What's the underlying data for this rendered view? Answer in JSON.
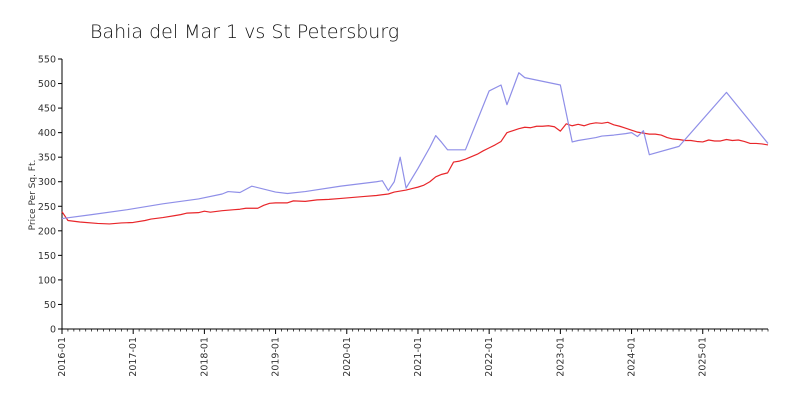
{
  "chart_data": {
    "type": "line",
    "title": "Bahia del Mar 1 vs St Petersburg",
    "xlabel": "",
    "ylabel": "Price Per Sq. Ft.",
    "ylim": [
      0,
      550
    ],
    "yticks": [
      0,
      50,
      100,
      150,
      200,
      250,
      300,
      350,
      400,
      450,
      500,
      550
    ],
    "xticks": [
      "2016-01",
      "2017-01",
      "2018-01",
      "2019-01",
      "2020-01",
      "2021-01",
      "2022-01",
      "2023-01",
      "2024-01",
      "2025-01"
    ],
    "xlim": [
      "2016-01",
      "2025-12"
    ],
    "grid": false,
    "legend": "none",
    "series": [
      {
        "color": "#e8262a",
        "points": [
          [
            "2016-01",
            239
          ],
          [
            "2016-02",
            221
          ],
          [
            "2016-04",
            218
          ],
          [
            "2016-07",
            215
          ],
          [
            "2016-09",
            214
          ],
          [
            "2016-11",
            216
          ],
          [
            "2017-01",
            217
          ],
          [
            "2017-03",
            221
          ],
          [
            "2017-04",
            224
          ],
          [
            "2017-06",
            227
          ],
          [
            "2017-08",
            231
          ],
          [
            "2017-09",
            233
          ],
          [
            "2017-10",
            236
          ],
          [
            "2017-12",
            237
          ],
          [
            "2018-01",
            240
          ],
          [
            "2018-02",
            238
          ],
          [
            "2018-04",
            241
          ],
          [
            "2018-06",
            243
          ],
          [
            "2018-07",
            244
          ],
          [
            "2018-08",
            246
          ],
          [
            "2018-09",
            246
          ],
          [
            "2018-10",
            246
          ],
          [
            "2018-11",
            252
          ],
          [
            "2018-12",
            256
          ],
          [
            "2019-01",
            257
          ],
          [
            "2019-03",
            257
          ],
          [
            "2019-04",
            261
          ],
          [
            "2019-06",
            260
          ],
          [
            "2019-08",
            263
          ],
          [
            "2019-10",
            264
          ],
          [
            "2019-12",
            266
          ],
          [
            "2020-01",
            267
          ],
          [
            "2020-03",
            269
          ],
          [
            "2020-04",
            270
          ],
          [
            "2020-06",
            272
          ],
          [
            "2020-08",
            275
          ],
          [
            "2020-09",
            279
          ],
          [
            "2020-10",
            281
          ],
          [
            "2020-11",
            283
          ],
          [
            "2020-12",
            286
          ],
          [
            "2021-01",
            289
          ],
          [
            "2021-02",
            293
          ],
          [
            "2021-03",
            300
          ],
          [
            "2021-04",
            310
          ],
          [
            "2021-05",
            315
          ],
          [
            "2021-06",
            318
          ],
          [
            "2021-07",
            340
          ],
          [
            "2021-08",
            342
          ],
          [
            "2021-09",
            346
          ],
          [
            "2021-10",
            351
          ],
          [
            "2021-11",
            356
          ],
          [
            "2021-12",
            363
          ],
          [
            "2022-01",
            369
          ],
          [
            "2022-02",
            375
          ],
          [
            "2022-03",
            382
          ],
          [
            "2022-04",
            400
          ],
          [
            "2022-05",
            404
          ],
          [
            "2022-06",
            408
          ],
          [
            "2022-07",
            411
          ],
          [
            "2022-08",
            410
          ],
          [
            "2022-09",
            413
          ],
          [
            "2022-10",
            413
          ],
          [
            "2022-11",
            414
          ],
          [
            "2022-12",
            412
          ],
          [
            "2023-01",
            403
          ],
          [
            "2023-02",
            418
          ],
          [
            "2023-03",
            414
          ],
          [
            "2023-04",
            417
          ],
          [
            "2023-05",
            414
          ],
          [
            "2023-06",
            418
          ],
          [
            "2023-07",
            420
          ],
          [
            "2023-08",
            419
          ],
          [
            "2023-09",
            421
          ],
          [
            "2023-10",
            416
          ],
          [
            "2023-11",
            413
          ],
          [
            "2023-12",
            409
          ],
          [
            "2024-01",
            405
          ],
          [
            "2024-02",
            401
          ],
          [
            "2024-03",
            399
          ],
          [
            "2024-04",
            397
          ],
          [
            "2024-05",
            397
          ],
          [
            "2024-06",
            395
          ],
          [
            "2024-07",
            390
          ],
          [
            "2024-08",
            387
          ],
          [
            "2024-09",
            386
          ],
          [
            "2024-10",
            384
          ],
          [
            "2024-11",
            384
          ],
          [
            "2024-12",
            382
          ],
          [
            "2025-01",
            381
          ],
          [
            "2025-02",
            385
          ],
          [
            "2025-03",
            383
          ],
          [
            "2025-04",
            383
          ],
          [
            "2025-05",
            386
          ],
          [
            "2025-06",
            384
          ],
          [
            "2025-07",
            385
          ],
          [
            "2025-08",
            382
          ],
          [
            "2025-09",
            378
          ],
          [
            "2025-10",
            378
          ],
          [
            "2025-11",
            377
          ],
          [
            "2025-12",
            375
          ]
        ]
      },
      {
        "color": "#8f8fe8",
        "points": [
          [
            "2016-01",
            225
          ],
          [
            "2016-06",
            233
          ],
          [
            "2016-12",
            243
          ],
          [
            "2017-06",
            255
          ],
          [
            "2017-12",
            265
          ],
          [
            "2018-04",
            275
          ],
          [
            "2018-05",
            280
          ],
          [
            "2018-07",
            278
          ],
          [
            "2018-09",
            291
          ],
          [
            "2019-01",
            279
          ],
          [
            "2019-03",
            276
          ],
          [
            "2019-06",
            280
          ],
          [
            "2019-12",
            291
          ],
          [
            "2020-06",
            300
          ],
          [
            "2020-07",
            302
          ],
          [
            "2020-08",
            282
          ],
          [
            "2020-09",
            300
          ],
          [
            "2020-10",
            350
          ],
          [
            "2020-11",
            287
          ],
          [
            "2021-01",
            327
          ],
          [
            "2021-03",
            370
          ],
          [
            "2021-04",
            394
          ],
          [
            "2021-05",
            380
          ],
          [
            "2021-06",
            365
          ],
          [
            "2021-09",
            365
          ],
          [
            "2022-01",
            485
          ],
          [
            "2022-03",
            497
          ],
          [
            "2022-04",
            457
          ],
          [
            "2022-06",
            522
          ],
          [
            "2022-07",
            512
          ],
          [
            "2023-01",
            497
          ],
          [
            "2023-03",
            381
          ],
          [
            "2023-04",
            384
          ],
          [
            "2023-06",
            388
          ],
          [
            "2023-07",
            390
          ],
          [
            "2023-08",
            393
          ],
          [
            "2023-10",
            395
          ],
          [
            "2023-12",
            398
          ],
          [
            "2024-01",
            400
          ],
          [
            "2024-02",
            392
          ],
          [
            "2024-03",
            404
          ],
          [
            "2024-04",
            355
          ],
          [
            "2024-09",
            372
          ],
          [
            "2025-05",
            482
          ],
          [
            "2025-12",
            378
          ]
        ]
      }
    ]
  }
}
